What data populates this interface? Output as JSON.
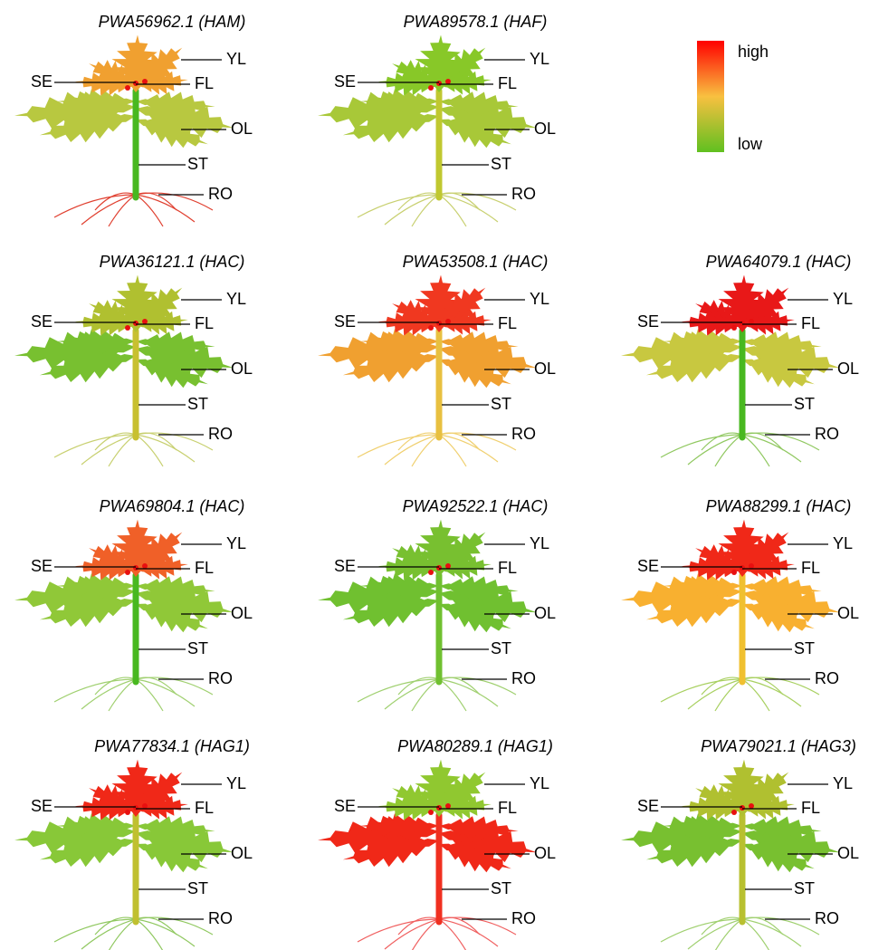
{
  "legend": {
    "high": "high",
    "low": "low"
  },
  "labels": {
    "YL": "YL",
    "SE": "SE",
    "FL": "FL",
    "OL": "OL",
    "ST": "ST",
    "RO": "RO"
  },
  "panels": [
    {
      "title": "PWA56962.1 (HAM)",
      "colors": {
        "young": "#f0a030",
        "old": "#b8c840",
        "stem": "#48b820",
        "root": "#e04030"
      }
    },
    {
      "title": "PWA89578.1 (HAF)",
      "colors": {
        "young": "#88c828",
        "old": "#a8c838",
        "stem": "#c0c830",
        "root": "#c8d070"
      }
    },
    {
      "title": "PWA36121.1 (HAC)",
      "colors": {
        "young": "#b0c030",
        "old": "#78c030",
        "stem": "#c8c030",
        "root": "#c8d070"
      }
    },
    {
      "title": "PWA53508.1 (HAC)",
      "colors": {
        "young": "#f03820",
        "old": "#f0a030",
        "stem": "#e8c040",
        "root": "#f0d070"
      }
    },
    {
      "title": "PWA64079.1 (HAC)",
      "colors": {
        "young": "#e81818",
        "old": "#c8c840",
        "stem": "#48b820",
        "root": "#90c860"
      }
    },
    {
      "title": "PWA69804.1 (HAC)",
      "colors": {
        "young": "#f06028",
        "old": "#90c838",
        "stem": "#48b820",
        "root": "#a0d070"
      }
    },
    {
      "title": "PWA92522.1 (HAC)",
      "colors": {
        "young": "#78c030",
        "old": "#70c030",
        "stem": "#70c030",
        "root": "#a0d070"
      }
    },
    {
      "title": "PWA88299.1 (HAC)",
      "colors": {
        "young": "#f02818",
        "old": "#f8b030",
        "stem": "#f0c030",
        "root": "#a8d060"
      }
    },
    {
      "title": "PWA77834.1 (HAG1)",
      "colors": {
        "young": "#f02818",
        "old": "#88c838",
        "stem": "#c0c030",
        "root": "#90c860"
      }
    },
    {
      "title": "PWA80289.1 (HAG1)",
      "colors": {
        "young": "#90c830",
        "old": "#f02818",
        "stem": "#f03020",
        "root": "#f06060"
      }
    },
    {
      "title": "PWA79021.1 (HAG3)",
      "colors": {
        "young": "#b0c030",
        "old": "#78c030",
        "stem": "#b8c030",
        "root": "#a0d070"
      }
    }
  ]
}
